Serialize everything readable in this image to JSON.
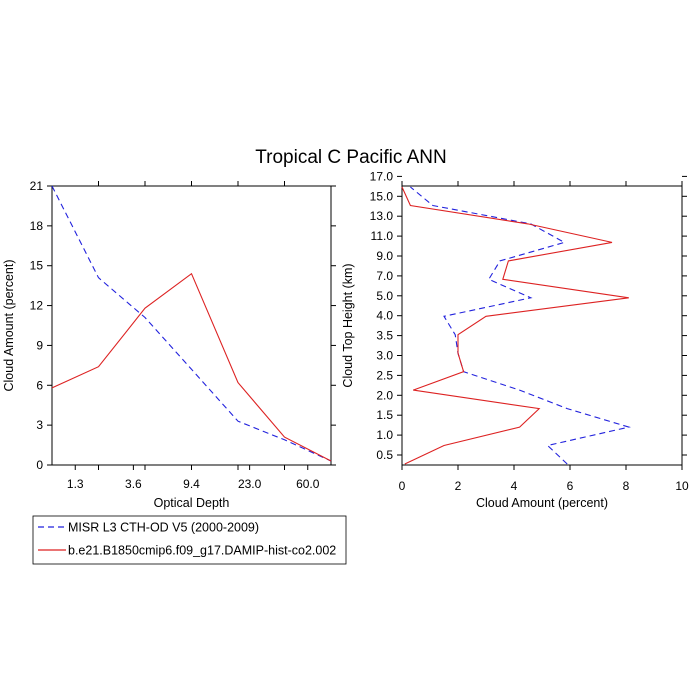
{
  "colors": {
    "obs": "#2222dd",
    "model": "#dd2222",
    "axis": "#000000"
  },
  "chart_data": [
    {
      "type": "line",
      "title": "Tropical C Pacific ANN",
      "xlabel": "Optical Depth",
      "ylabel": "Cloud Amount (percent)",
      "x_categories": [
        "1.3",
        "3.6",
        "9.4",
        "23.0",
        "60.0"
      ],
      "x": [
        0,
        1,
        2,
        3,
        4,
        5,
        6
      ],
      "xlim": [
        0,
        6
      ],
      "ylim": [
        0,
        21
      ],
      "yticks": [
        "0",
        "3",
        "6",
        "9",
        "12",
        "15",
        "18",
        "21"
      ],
      "series": [
        {
          "name": "MISR L3 CTH-OD V5 (2000-2009)",
          "style": "dashed",
          "values": [
            21.0,
            14.1,
            11.1,
            7.2,
            3.3,
            1.9,
            0.3
          ]
        },
        {
          "name": "b.e21.B1850cmip6.f09_g17.DAMIP-hist-co2.002",
          "style": "solid",
          "values": [
            5.8,
            7.4,
            11.8,
            14.4,
            6.2,
            2.1,
            0.3
          ]
        }
      ]
    },
    {
      "type": "line",
      "xlabel": "Cloud Amount (percent)",
      "ylabel": "Cloud Top Height (km)",
      "xlim": [
        0,
        10
      ],
      "xticks": [
        "0",
        "2",
        "4",
        "6",
        "8",
        "10"
      ],
      "ylim": [
        0,
        14
      ],
      "height_labels": [
        "0.5",
        "1.0",
        "1.5",
        "2.0",
        "2.5",
        "3.0",
        "3.5",
        "4.0",
        "5.0",
        "7.0",
        "9.0",
        "11.0",
        "13.0",
        "15.0",
        "17.0"
      ],
      "series": [
        {
          "name": "MISR L3 CTH-OD V5 (2000-2009)",
          "style": "dashed",
          "values": [
            5.9,
            5.2,
            8.1,
            5.9,
            4.2,
            2.2,
            2.0,
            1.9,
            1.5,
            4.6,
            3.1,
            3.5,
            5.8,
            4.6,
            1.1,
            0.3
          ]
        },
        {
          "name": "b.e21.B1850cmip6.f09_g17.DAMIP-hist-co2.002",
          "style": "solid",
          "values": [
            0.1,
            1.5,
            4.2,
            4.9,
            0.4,
            2.2,
            2.0,
            2.0,
            3.0,
            8.1,
            3.6,
            3.8,
            7.5,
            4.5,
            0.3,
            0.0
          ]
        }
      ]
    }
  ],
  "legend": {
    "entries": [
      "MISR L3 CTH-OD V5 (2000-2009)",
      "b.e21.B1850cmip6.f09_g17.DAMIP-hist-co2.002"
    ]
  }
}
